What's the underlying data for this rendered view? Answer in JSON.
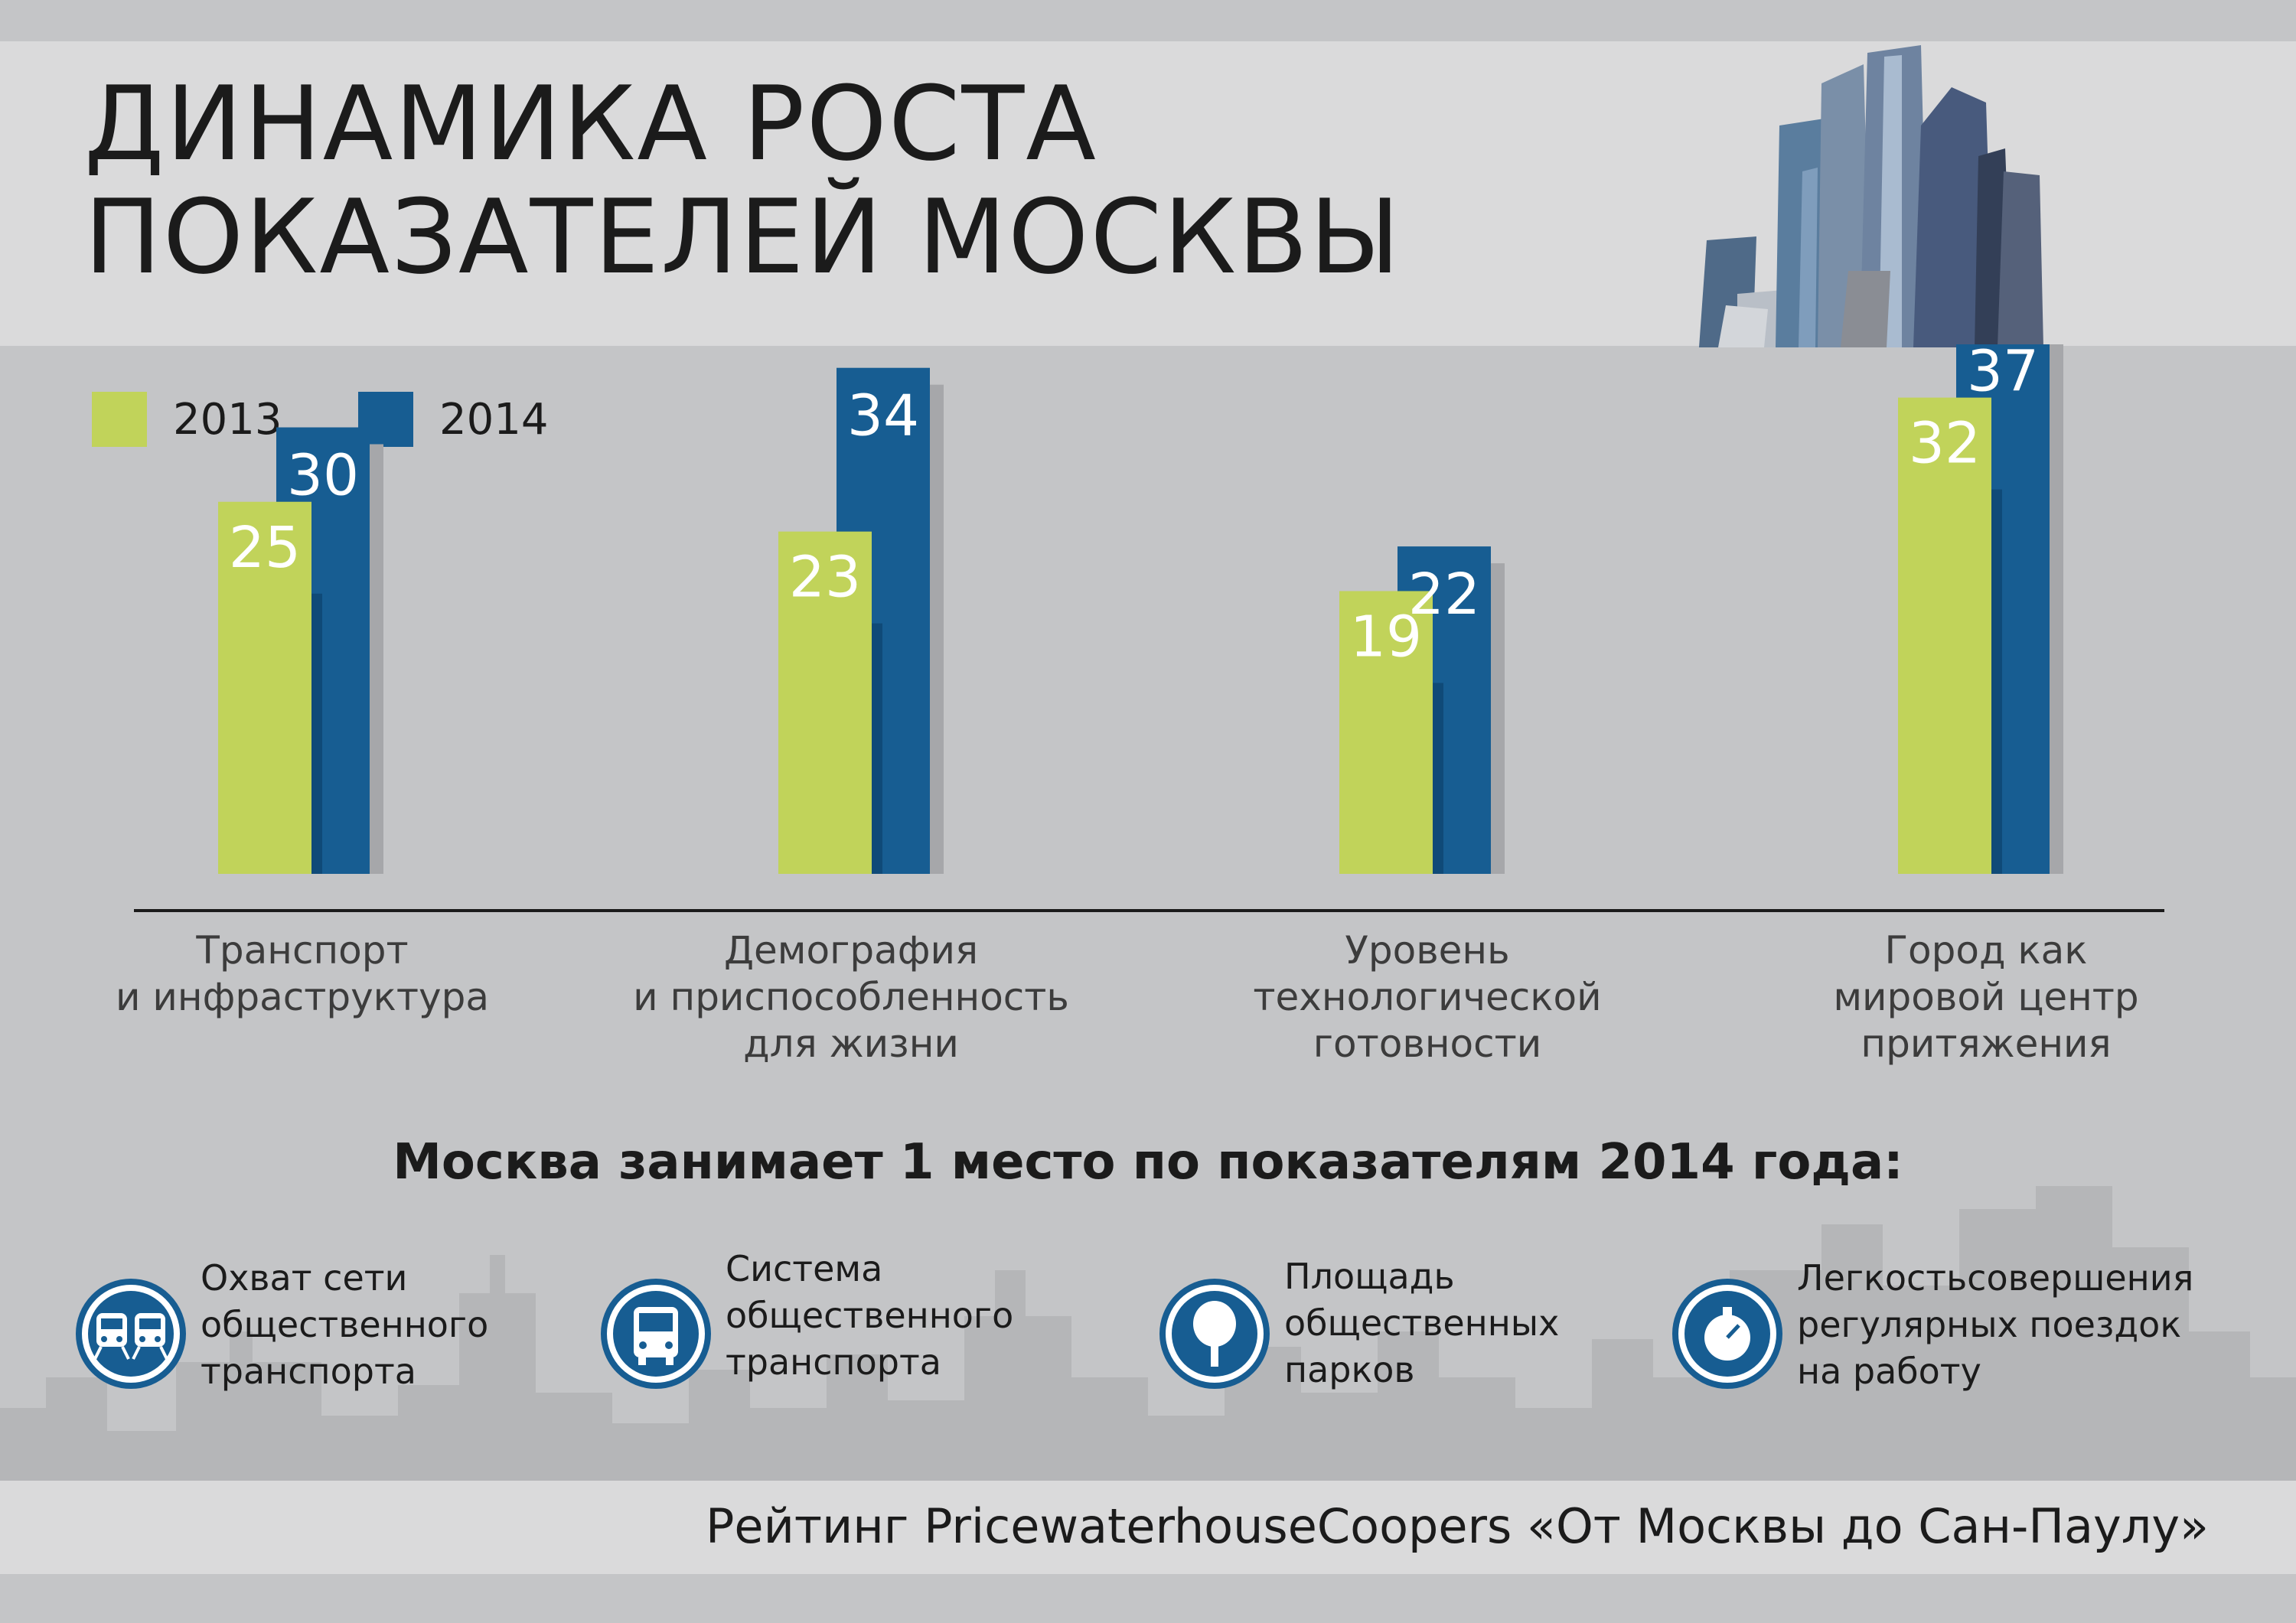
{
  "title_lines": [
    "ДИНАМИКА РОСТА",
    "ПОКАЗАТЕЛЕЙ МОСКВЫ"
  ],
  "legend": [
    {
      "label": "2013",
      "color": "#c1d35a"
    },
    {
      "label": "2014",
      "color": "#175d92"
    }
  ],
  "chart_data": {
    "type": "bar",
    "categories": [
      [
        "Транспорт",
        "и инфраструктура"
      ],
      [
        "Демография",
        "и приспособленность",
        "для жизни"
      ],
      [
        "Уровень",
        "технологической",
        "готовности"
      ],
      [
        "Город как",
        "мировой центр",
        "притяжения"
      ]
    ],
    "series": [
      {
        "name": "2013",
        "values": [
          25,
          23,
          19,
          32
        ],
        "color": "#c1d35a"
      },
      {
        "name": "2014",
        "values": [
          30,
          34,
          22,
          37
        ],
        "color": "#175d92"
      }
    ],
    "ylim": [
      0,
      40
    ],
    "grid": false,
    "legend_placement": "top-left"
  },
  "headline": "Москва занимает 1 место по показателям 2014 года:",
  "features": [
    {
      "icon": "train-icon",
      "lines": [
        "Охват сети",
        "общественного",
        "транспорта"
      ]
    },
    {
      "icon": "bus-icon",
      "lines": [
        "Система",
        "общественного",
        "транспорта"
      ]
    },
    {
      "icon": "tree-icon",
      "lines": [
        "Площадь",
        "общественных",
        "парков"
      ]
    },
    {
      "icon": "stopwatch-icon",
      "lines": [
        "Легкостьсовершения",
        "регулярных поездок",
        "на работу"
      ]
    }
  ],
  "footer": "Рейтинг  PricewaterhouseCoopers «От Москвы до Сан-Паулу»",
  "colors": {
    "accent_blue": "#175d92",
    "accent_green": "#c1d35a",
    "header_bg": "#dadadb",
    "body_bg": "#c4c5c7"
  }
}
